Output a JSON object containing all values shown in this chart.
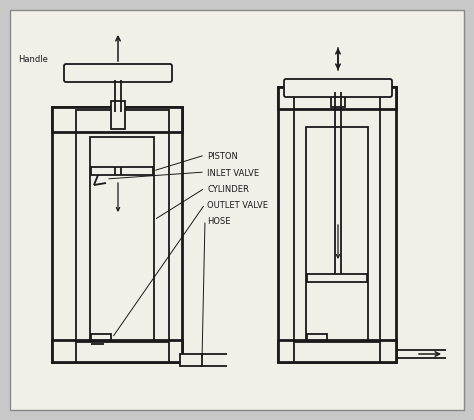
{
  "bg_color": "#c8c8c8",
  "paper_color": "#f0efe8",
  "lc": "#1a1a1a",
  "lw_thin": 0.8,
  "lw_mid": 1.3,
  "lw_thick": 2.0,
  "labels": {
    "handle": "Handle",
    "piston": "PISTON",
    "inlet_valve": "INLET VALVE",
    "cylinder": "CYLINDER",
    "outlet_valve": "OUTLET VALVE",
    "hose": "HOSE"
  },
  "figsize": [
    4.74,
    4.2
  ],
  "dpi": 100
}
